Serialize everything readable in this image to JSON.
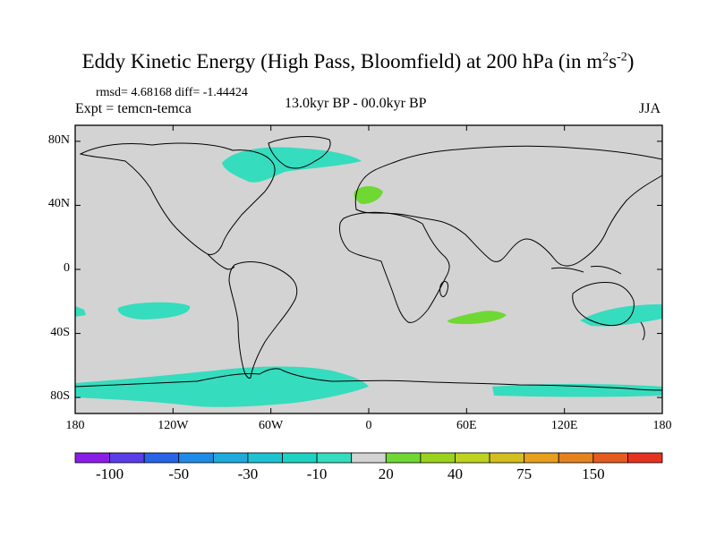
{
  "title": {
    "main": "Eddy Kinetic Energy (High Pass, Bloomfield) at 200 hPa (in m",
    "sup1": "2",
    "mid": "s",
    "sup2": "-2",
    "close": ")"
  },
  "stats": "rmsd= 4.68168 diff= -1.44424",
  "expt": "Expt = temcn-temca",
  "period": "13.0kyr BP - 00.0kyr BP",
  "season": "JJA",
  "map": {
    "lat_ticks": [
      {
        "value": 80,
        "label": "80N"
      },
      {
        "value": 40,
        "label": "40N"
      },
      {
        "value": 0,
        "label": "0"
      },
      {
        "value": -40,
        "label": "40S"
      },
      {
        "value": -80,
        "label": "80S"
      }
    ],
    "lon_ticks": [
      {
        "value": -180,
        "label": "180"
      },
      {
        "value": -120,
        "label": "120W"
      },
      {
        "value": -60,
        "label": "60W"
      },
      {
        "value": 0,
        "label": "0"
      },
      {
        "value": 60,
        "label": "60E"
      },
      {
        "value": 120,
        "label": "120E"
      },
      {
        "value": 180,
        "label": "180"
      }
    ],
    "background_color": "#d3d3d3",
    "negative_color": "#36dcbe",
    "positive_color": "#6fd832"
  },
  "colorbar": {
    "colors": [
      "#8a1ee6",
      "#5a3ee6",
      "#2864e6",
      "#1e8ce6",
      "#1eaadc",
      "#1ec3d2",
      "#1ed2c3",
      "#36dcbe",
      "#d3d3d3",
      "#6fd832",
      "#9ad21e",
      "#bed21e",
      "#d2be1e",
      "#e6a01e",
      "#e6821e",
      "#e65a1e",
      "#e6321e"
    ],
    "labels": [
      {
        "boundary": 1,
        "text": "-100"
      },
      {
        "boundary": 3,
        "text": "-50"
      },
      {
        "boundary": 5,
        "text": "-30"
      },
      {
        "boundary": 7,
        "text": "-10"
      },
      {
        "boundary": 9,
        "text": "20"
      },
      {
        "boundary": 11,
        "text": "40"
      },
      {
        "boundary": 13,
        "text": "75"
      },
      {
        "boundary": 15,
        "text": "150"
      }
    ]
  }
}
